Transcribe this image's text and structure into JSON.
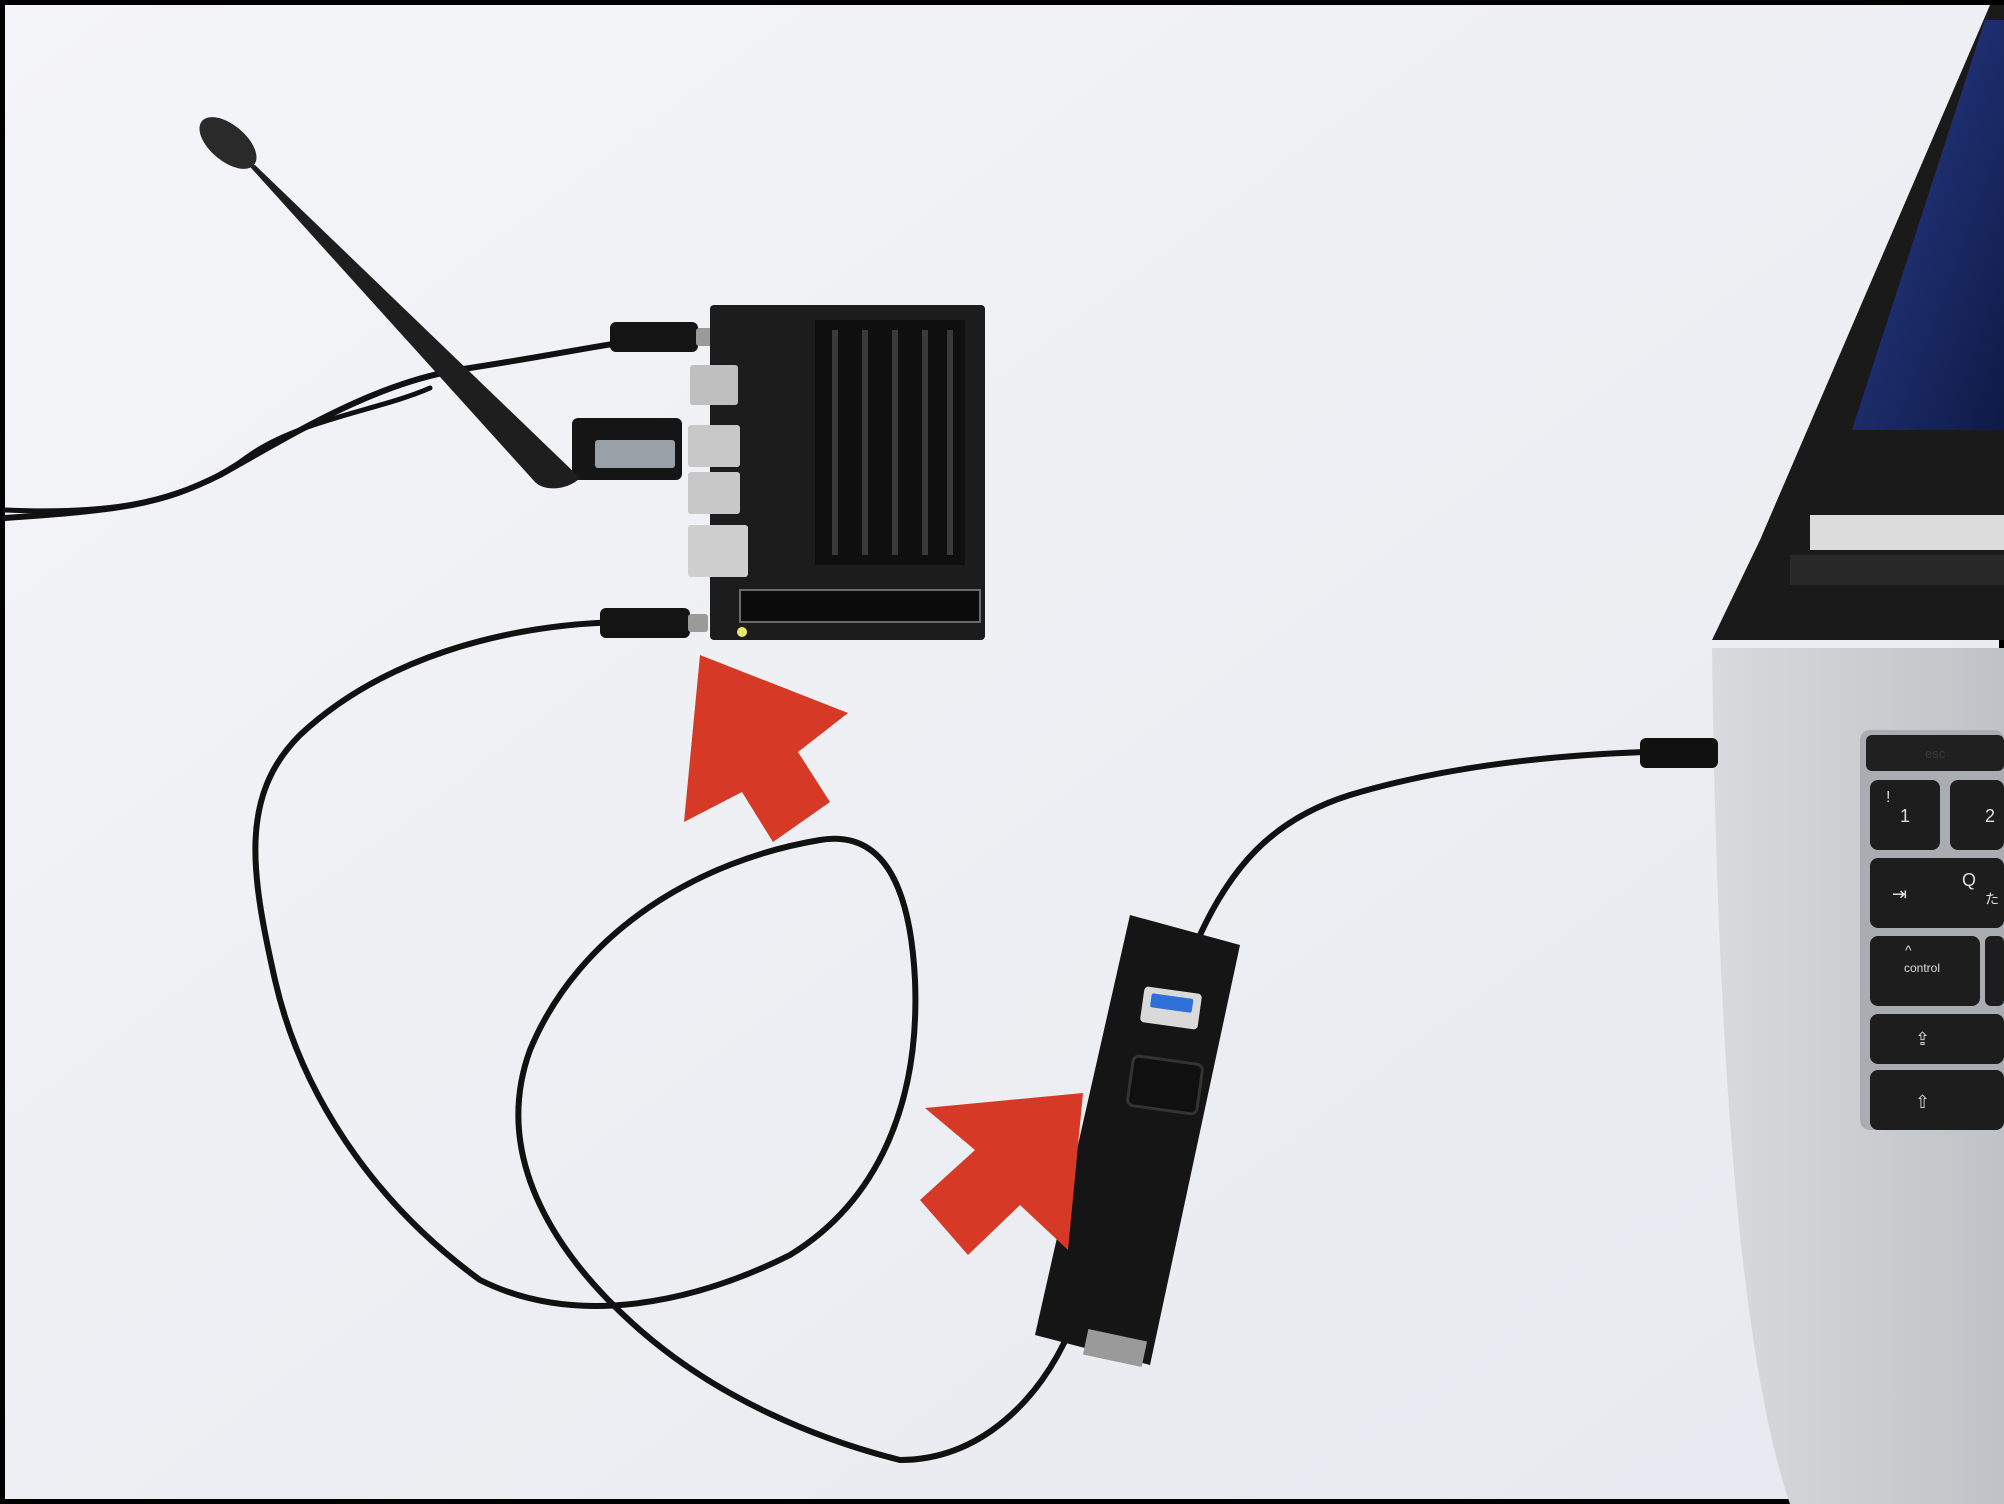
{
  "scene": {
    "description_free": true,
    "colors": {
      "background": "#eef0f4",
      "frame": "#000000",
      "arrow": "#d63a26",
      "cable": "#111111",
      "board": "#1c1c1c",
      "laptop_body": "#cfd2d6",
      "hub": "#151515",
      "usb_port": "#2f6fd8"
    },
    "objects": [
      {
        "name": "antenna",
        "icon": "antenna-shape"
      },
      {
        "name": "dev-board",
        "icon": "pcb-board"
      },
      {
        "name": "usb-hub",
        "icon": "usb-hub"
      },
      {
        "name": "laptop",
        "icon": "laptop"
      },
      {
        "name": "arrow-to-board",
        "icon": "red-arrow"
      },
      {
        "name": "arrow-to-hub",
        "icon": "red-arrow"
      }
    ]
  },
  "keyboard": {
    "esc": "esc",
    "one_top": "!",
    "one": "1",
    "two": "2",
    "q": "Q",
    "q_sub": "た",
    "tab": "⇥",
    "control": "control",
    "control_caret": "^",
    "caps": "⇪",
    "shift": "⇧"
  }
}
